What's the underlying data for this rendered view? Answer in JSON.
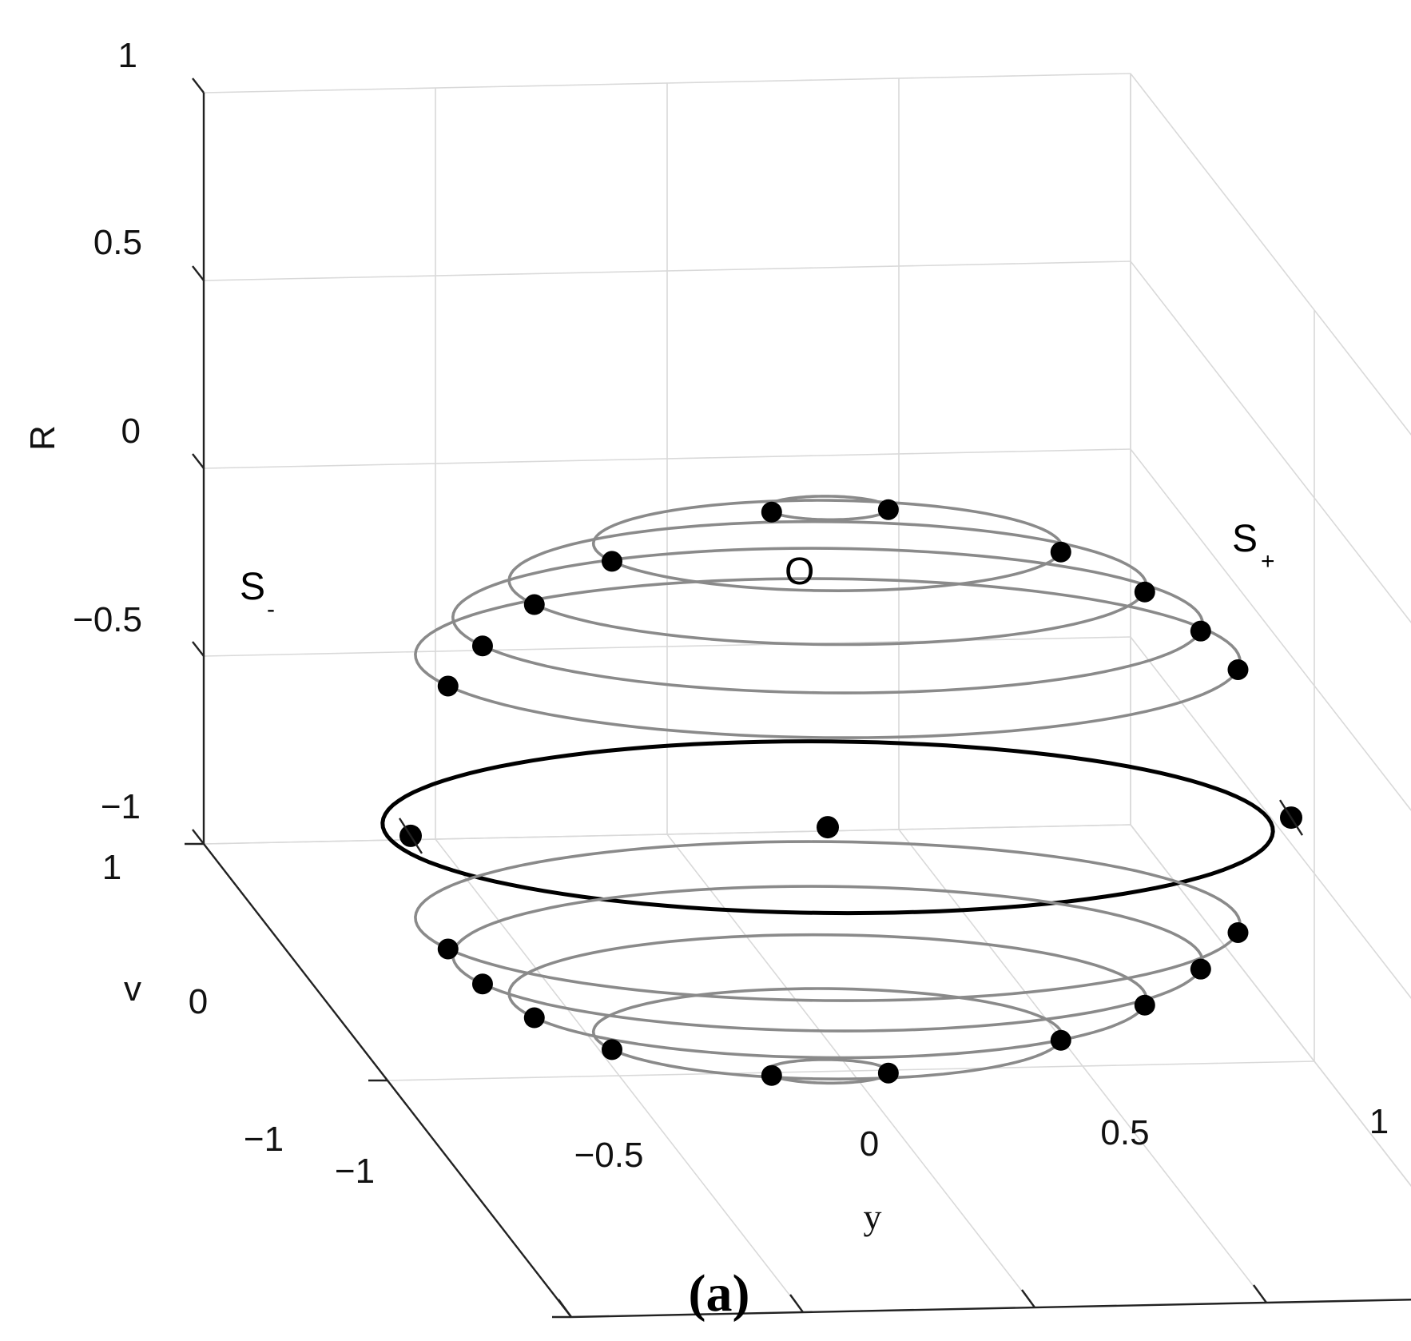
{
  "chart_data": {
    "type": "scatter",
    "title": "",
    "panel_label": "(a)",
    "axes": {
      "x": {
        "label": "y",
        "ticks": [
          "−1",
          "−0.5",
          "0",
          "0.5",
          "1"
        ],
        "range": [
          -1,
          1
        ]
      },
      "y": {
        "label": "v",
        "ticks": [
          "−1",
          "0",
          "1"
        ],
        "range": [
          -1,
          1
        ]
      },
      "z": {
        "label": "R",
        "ticks": [
          "−1",
          "−0.5",
          "0",
          "0.5",
          "1"
        ],
        "range": [
          -1,
          1
        ]
      }
    },
    "grid": true,
    "special_points": [
      {
        "label": "O",
        "x": -0.05,
        "v": 0,
        "R": -0.35
      },
      {
        "label": "S",
        "sub": "-",
        "x": -0.95,
        "v": 0,
        "R": -0.35
      },
      {
        "label": "S",
        "sub": "+",
        "x": 0.95,
        "v": 0,
        "R": -0.35
      }
    ],
    "rings": [
      {
        "R": 0.5,
        "radius": 0.13
      },
      {
        "R": 0.4,
        "radius": 0.5
      },
      {
        "R": 0.3,
        "radius": 0.68
      },
      {
        "R": 0.2,
        "radius": 0.8
      },
      {
        "R": 0.1,
        "radius": 0.88
      },
      {
        "R": -0.35,
        "radius": 0.95,
        "highlight": true
      },
      {
        "R": -0.6,
        "radius": 0.88
      },
      {
        "R": -0.7,
        "radius": 0.8
      },
      {
        "R": -0.8,
        "radius": 0.68
      },
      {
        "R": -0.9,
        "radius": 0.5
      },
      {
        "R": -1.0,
        "radius": 0.13
      }
    ]
  }
}
